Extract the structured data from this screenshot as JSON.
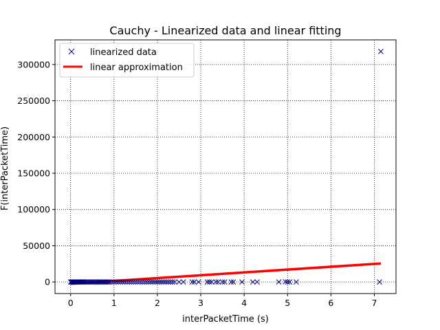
{
  "chart_data": {
    "type": "scatter",
    "title": "Cauchy - Linearized data and linear fitting",
    "xlabel": "interPacketTime (s)",
    "ylabel": "F(interPacketTime)",
    "xlim": [
      -0.36,
      7.5
    ],
    "ylim": [
      -16000,
      334000
    ],
    "xticks": [
      0,
      1,
      2,
      3,
      4,
      5,
      6,
      7
    ],
    "yticks": [
      0,
      50000,
      100000,
      150000,
      200000,
      250000,
      300000
    ],
    "grid": true,
    "legend": {
      "placement": "top-left",
      "entries": [
        {
          "label": "linearized data",
          "marker": "x",
          "color": "#00007f"
        },
        {
          "label": "linear approximation",
          "marker": "line",
          "color": "#ff0000"
        }
      ]
    },
    "series": [
      {
        "name": "linearized data",
        "kind": "scatter",
        "marker": "x",
        "color": "#00007f",
        "x": [
          0,
          0.02,
          0.04,
          0.06,
          0.08,
          0.1,
          0.12,
          0.14,
          0.16,
          0.18,
          0.2,
          0.22,
          0.24,
          0.26,
          0.28,
          0.3,
          0.33,
          0.36,
          0.39,
          0.42,
          0.45,
          0.48,
          0.51,
          0.54,
          0.57,
          0.6,
          0.63,
          0.66,
          0.69,
          0.72,
          0.75,
          0.78,
          0.81,
          0.84,
          0.87,
          0.9,
          0.95,
          1.0,
          1.05,
          1.1,
          1.15,
          1.2,
          1.25,
          1.3,
          1.35,
          1.4,
          1.45,
          1.5,
          1.55,
          1.6,
          1.65,
          1.7,
          1.75,
          1.8,
          1.85,
          1.9,
          1.95,
          2.0,
          2.05,
          2.1,
          2.15,
          2.2,
          2.25,
          2.3,
          2.35,
          2.4,
          2.5,
          2.6,
          2.8,
          2.85,
          2.95,
          3.15,
          3.2,
          3.25,
          3.35,
          3.4,
          3.5,
          3.55,
          3.7,
          3.75,
          3.95,
          4.2,
          4.3,
          4.8,
          4.95,
          5.0,
          5.05,
          5.2,
          7.12,
          7.15
        ],
        "y": [
          0,
          0,
          0,
          0,
          0,
          0,
          0,
          0,
          0,
          0,
          0,
          0,
          0,
          0,
          0,
          0,
          0,
          0,
          0,
          0,
          0,
          0,
          0,
          0,
          0,
          0,
          0,
          0,
          0,
          0,
          0,
          0,
          0,
          0,
          0,
          0,
          0,
          0,
          0,
          0,
          0,
          0,
          0,
          0,
          0,
          0,
          0,
          0,
          0,
          0,
          0,
          0,
          0,
          0,
          0,
          0,
          0,
          0,
          0,
          0,
          0,
          0,
          0,
          0,
          0,
          0,
          0,
          0,
          0,
          0,
          0,
          0,
          0,
          0,
          0,
          0,
          0,
          0,
          0,
          0,
          0,
          0,
          0,
          0,
          300,
          0,
          0,
          0,
          0,
          318000
        ]
      },
      {
        "name": "linear approximation",
        "kind": "line",
        "color": "#ff0000",
        "x": [
          0,
          7.15
        ],
        "y": [
          -2500,
          25500
        ]
      }
    ]
  }
}
